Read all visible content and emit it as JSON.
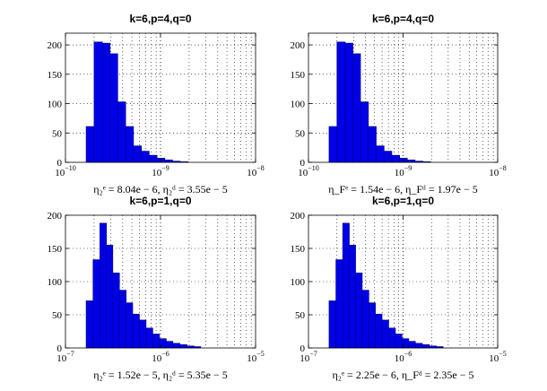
{
  "chart_data": [
    {
      "type": "bar",
      "title": "k=6,p=4,q=0",
      "xscale": "log",
      "xlim": [
        1e-10,
        1e-08
      ],
      "ylim": [
        0,
        220
      ],
      "xticks": [
        {
          "base": "10",
          "exp": "−10"
        },
        {
          "base": "10",
          "exp": "−9"
        },
        {
          "base": "10",
          "exp": "−8"
        }
      ],
      "yticks": [
        "0",
        "50",
        "100",
        "150",
        "200"
      ],
      "grid": true,
      "xlabel": "η₂ᵉ = 8.04e − 6,    η₂ᵈ = 3.55e − 5",
      "bins": [
        {
          "x0": 1.65e-10,
          "x1": 2e-10,
          "y": 61
        },
        {
          "x0": 2e-10,
          "x1": 2.45e-10,
          "y": 205
        },
        {
          "x0": 2.45e-10,
          "x1": 2.95e-10,
          "y": 203
        },
        {
          "x0": 2.95e-10,
          "x1": 3.55e-10,
          "y": 185
        },
        {
          "x0": 3.55e-10,
          "x1": 4.3e-10,
          "y": 103
        },
        {
          "x0": 4.3e-10,
          "x1": 5.2e-10,
          "y": 61
        },
        {
          "x0": 5.2e-10,
          "x1": 6.3e-10,
          "y": 28
        },
        {
          "x0": 6.3e-10,
          "x1": 7.6e-10,
          "y": 19
        },
        {
          "x0": 7.6e-10,
          "x1": 9.2e-10,
          "y": 12
        },
        {
          "x0": 9.2e-10,
          "x1": 1.11e-09,
          "y": 7
        },
        {
          "x0": 1.11e-09,
          "x1": 1.34e-09,
          "y": 4
        },
        {
          "x0": 1.34e-09,
          "x1": 1.62e-09,
          "y": 2
        },
        {
          "x0": 1.62e-09,
          "x1": 1.96e-09,
          "y": 1
        }
      ]
    },
    {
      "type": "bar",
      "title": "k=6,p=4,q=0",
      "xscale": "log",
      "xlim": [
        1e-10,
        1e-08
      ],
      "ylim": [
        0,
        220
      ],
      "xticks": [
        {
          "base": "10",
          "exp": "−10"
        },
        {
          "base": "10",
          "exp": "−9"
        },
        {
          "base": "10",
          "exp": "−8"
        }
      ],
      "yticks": [
        "0",
        "50",
        "100",
        "150",
        "200"
      ],
      "grid": true,
      "xlabel": "η_Fᵉ = 1.54e − 6,    η_Fᵈ = 1.97e − 5",
      "bins": [
        {
          "x0": 1.65e-10,
          "x1": 2e-10,
          "y": 61
        },
        {
          "x0": 2e-10,
          "x1": 2.45e-10,
          "y": 205
        },
        {
          "x0": 2.45e-10,
          "x1": 2.95e-10,
          "y": 203
        },
        {
          "x0": 2.95e-10,
          "x1": 3.55e-10,
          "y": 185
        },
        {
          "x0": 3.55e-10,
          "x1": 4.3e-10,
          "y": 103
        },
        {
          "x0": 4.3e-10,
          "x1": 5.2e-10,
          "y": 61
        },
        {
          "x0": 5.2e-10,
          "x1": 6.3e-10,
          "y": 28
        },
        {
          "x0": 6.3e-10,
          "x1": 7.6e-10,
          "y": 19
        },
        {
          "x0": 7.6e-10,
          "x1": 9.2e-10,
          "y": 12
        },
        {
          "x0": 9.2e-10,
          "x1": 1.11e-09,
          "y": 7
        },
        {
          "x0": 1.11e-09,
          "x1": 1.34e-09,
          "y": 4
        },
        {
          "x0": 1.34e-09,
          "x1": 1.62e-09,
          "y": 2
        },
        {
          "x0": 1.62e-09,
          "x1": 1.96e-09,
          "y": 1
        }
      ]
    },
    {
      "type": "bar",
      "title": "k=6,p=1,q=0",
      "xscale": "log",
      "xlim": [
        1e-07,
        1e-05
      ],
      "ylim": [
        0,
        200
      ],
      "xticks": [
        {
          "base": "10",
          "exp": "−7"
        },
        {
          "base": "10",
          "exp": "−6"
        },
        {
          "base": "10",
          "exp": "−5"
        }
      ],
      "yticks": [
        "0",
        "50",
        "100",
        "150",
        "200"
      ],
      "grid": true,
      "xlabel": "η₂ᵉ = 1.52e − 5,    η₂ᵈ = 5.35e − 5",
      "bins": [
        {
          "x0": 1.65e-07,
          "x1": 1.95e-07,
          "y": 71
        },
        {
          "x0": 1.95e-07,
          "x1": 2.3e-07,
          "y": 133
        },
        {
          "x0": 2.3e-07,
          "x1": 2.7e-07,
          "y": 188
        },
        {
          "x0": 2.7e-07,
          "x1": 3.15e-07,
          "y": 155
        },
        {
          "x0": 3.15e-07,
          "x1": 3.7e-07,
          "y": 113
        },
        {
          "x0": 3.7e-07,
          "x1": 4.35e-07,
          "y": 87
        },
        {
          "x0": 4.35e-07,
          "x1": 5.1e-07,
          "y": 68
        },
        {
          "x0": 5.1e-07,
          "x1": 6e-07,
          "y": 51
        },
        {
          "x0": 6e-07,
          "x1": 7.05e-07,
          "y": 42
        },
        {
          "x0": 7.05e-07,
          "x1": 8.3e-07,
          "y": 30
        },
        {
          "x0": 8.3e-07,
          "x1": 9.75e-07,
          "y": 21
        },
        {
          "x0": 9.75e-07,
          "x1": 1.15e-06,
          "y": 14
        },
        {
          "x0": 1.15e-06,
          "x1": 1.35e-06,
          "y": 10
        },
        {
          "x0": 1.35e-06,
          "x1": 1.6e-06,
          "y": 7
        },
        {
          "x0": 1.6e-06,
          "x1": 1.9e-06,
          "y": 5
        },
        {
          "x0": 1.9e-06,
          "x1": 2.25e-06,
          "y": 3
        },
        {
          "x0": 2.25e-06,
          "x1": 2.65e-06,
          "y": 2
        }
      ]
    },
    {
      "type": "bar",
      "title": "k=6,p=1,q=0",
      "xscale": "log",
      "xlim": [
        1e-07,
        1e-05
      ],
      "ylim": [
        0,
        200
      ],
      "xticks": [
        {
          "base": "10",
          "exp": "−7"
        },
        {
          "base": "10",
          "exp": "−6"
        },
        {
          "base": "10",
          "exp": "−5"
        }
      ],
      "yticks": [
        "0",
        "50",
        "100",
        "150",
        "200"
      ],
      "grid": true,
      "xlabel": "η₂ᵉ = 2.25e − 6,    η_Fᵈ = 2.35e − 5",
      "bins": [
        {
          "x0": 1.65e-07,
          "x1": 1.95e-07,
          "y": 71
        },
        {
          "x0": 1.95e-07,
          "x1": 2.3e-07,
          "y": 133
        },
        {
          "x0": 2.3e-07,
          "x1": 2.7e-07,
          "y": 188
        },
        {
          "x0": 2.7e-07,
          "x1": 3.15e-07,
          "y": 155
        },
        {
          "x0": 3.15e-07,
          "x1": 3.7e-07,
          "y": 113
        },
        {
          "x0": 3.7e-07,
          "x1": 4.35e-07,
          "y": 87
        },
        {
          "x0": 4.35e-07,
          "x1": 5.1e-07,
          "y": 68
        },
        {
          "x0": 5.1e-07,
          "x1": 6e-07,
          "y": 51
        },
        {
          "x0": 6e-07,
          "x1": 7.05e-07,
          "y": 42
        },
        {
          "x0": 7.05e-07,
          "x1": 8.3e-07,
          "y": 30
        },
        {
          "x0": 8.3e-07,
          "x1": 9.75e-07,
          "y": 21
        },
        {
          "x0": 9.75e-07,
          "x1": 1.15e-06,
          "y": 14
        },
        {
          "x0": 1.15e-06,
          "x1": 1.35e-06,
          "y": 10
        },
        {
          "x0": 1.35e-06,
          "x1": 1.6e-06,
          "y": 7
        },
        {
          "x0": 1.6e-06,
          "x1": 1.9e-06,
          "y": 5
        },
        {
          "x0": 1.9e-06,
          "x1": 2.25e-06,
          "y": 3
        },
        {
          "x0": 2.25e-06,
          "x1": 2.65e-06,
          "y": 2
        }
      ]
    }
  ],
  "colors": {
    "bar_fill": "#0000e6",
    "bar_edge": "#000080"
  }
}
